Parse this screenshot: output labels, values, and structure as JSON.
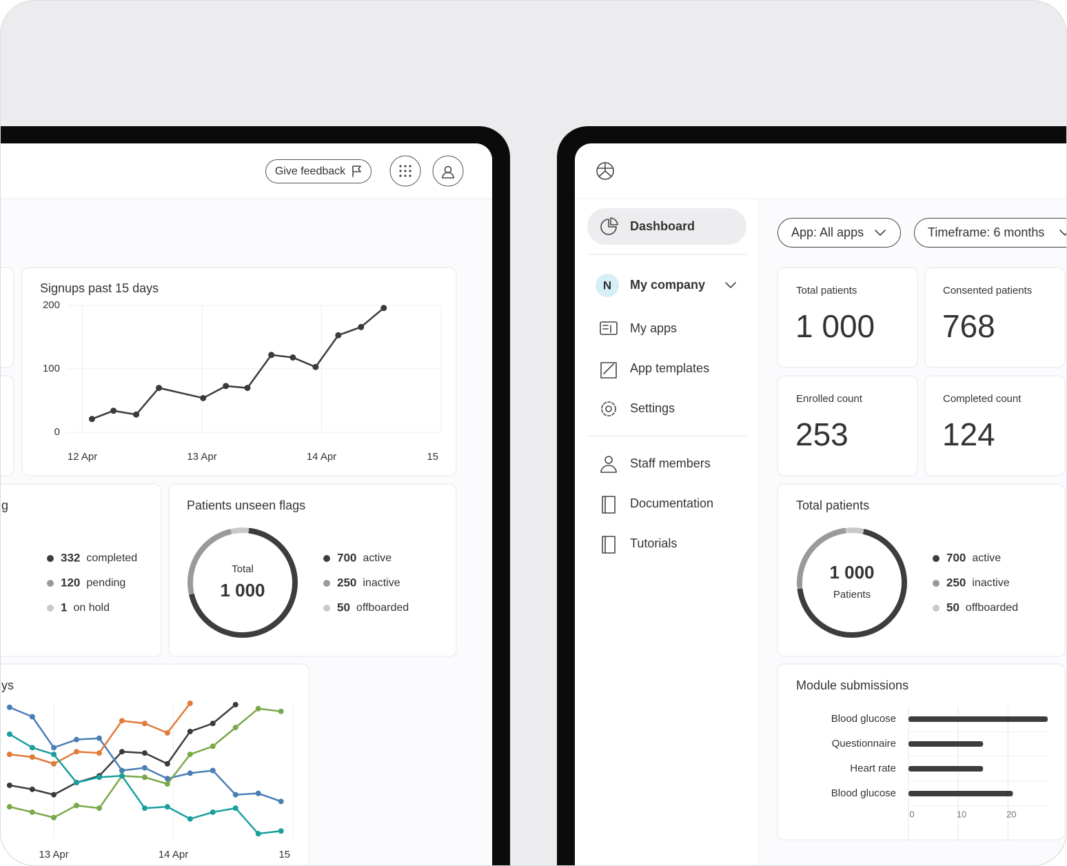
{
  "left_screen": {
    "feedback_button": "Give feedback"
  },
  "right_screen": {
    "nav": {
      "dashboard": "Dashboard",
      "company_avatar": "N",
      "company": "My company",
      "items": [
        "My apps",
        "App templates",
        "Settings",
        "Staff members",
        "Documentation",
        "Tutorials"
      ]
    },
    "filters": [
      "App: All apps",
      "Timeframe: 6 months"
    ],
    "stats": [
      {
        "label": "Total patients",
        "value": "1 000"
      },
      {
        "label": "Consented patients",
        "value": "768"
      },
      {
        "label": "Enrolled count",
        "value": "253"
      },
      {
        "label": "Completed count",
        "value": "124"
      }
    ]
  },
  "chart_data": [
    {
      "type": "line",
      "title": "Signups past 15 days",
      "x": [
        0.08,
        0.26,
        0.45,
        0.64,
        1.01,
        1.2,
        1.38,
        1.58,
        1.76,
        1.95,
        2.14,
        2.33,
        2.52
      ],
      "series": [
        {
          "color": "#3a3a3a",
          "values": [
            21,
            34,
            28,
            70,
            54,
            73,
            70,
            122,
            118,
            103,
            153,
            166,
            196
          ]
        }
      ],
      "xlim": [
        -0.13,
        3.0
      ],
      "xticks": [
        {
          "value": 0,
          "label": "12 Apr"
        },
        {
          "value": 1,
          "label": "13 Apr"
        },
        {
          "value": 2,
          "label": "14 Apr"
        },
        {
          "value": 3,
          "label": "15"
        }
      ],
      "ylim": [
        0,
        200
      ],
      "yticks": [
        0,
        100,
        200
      ],
      "grid": true
    },
    {
      "type": "pie",
      "title": "g",
      "categories": [
        "completed",
        "pending",
        "on hold"
      ],
      "values": [
        332,
        120,
        1
      ],
      "colors": [
        "#3d3d3d",
        "#9a9a9a",
        "#c9c9c9"
      ]
    },
    {
      "type": "pie",
      "title": "Patients unseen flags",
      "categories": [
        "active",
        "inactive",
        "offboarded"
      ],
      "values": [
        700,
        250,
        50
      ],
      "colors": [
        "#3d3d3d",
        "#9a9a9a",
        "#c9c9c9"
      ],
      "center_label": "Total",
      "center_value": "1 000"
    },
    {
      "type": "line",
      "title": "ys",
      "x": [
        -0.37,
        -0.18,
        0,
        0.19,
        0.38,
        0.57,
        0.76,
        0.95,
        1.14,
        1.33,
        1.52,
        1.71,
        1.9
      ],
      "series": [
        {
          "color": "#3a3a3a",
          "values": [
            39,
            36,
            32,
            41,
            46,
            64,
            63,
            55,
            79,
            85,
            99,
            null,
            null
          ]
        },
        {
          "color": "#4a7fb5",
          "values": [
            97,
            90,
            67,
            73,
            74,
            50,
            52,
            44,
            48,
            50,
            32,
            33,
            27
          ]
        },
        {
          "color": "#e07b39",
          "values": [
            62,
            60,
            55,
            64,
            63,
            87,
            85,
            78,
            100,
            null,
            null,
            null,
            null
          ]
        },
        {
          "color": "#7aa84a",
          "values": [
            23,
            19,
            15,
            24,
            22,
            46,
            45,
            40,
            62,
            68,
            82,
            96,
            94
          ]
        },
        {
          "color": "#1a9e9e",
          "values": [
            77,
            67,
            62,
            41,
            45,
            46,
            22,
            23,
            14,
            19,
            22,
            3,
            5
          ]
        }
      ],
      "xlim": [
        -0.45,
        2.0
      ],
      "xticks": [
        {
          "value": 0,
          "label": "13 Apr"
        },
        {
          "value": 1,
          "label": "14 Apr"
        },
        {
          "value": 2,
          "label": "15"
        }
      ],
      "ylim": [
        0,
        100
      ],
      "grid": true
    },
    {
      "type": "pie",
      "title": "Total patients",
      "categories": [
        "active",
        "inactive",
        "offboarded"
      ],
      "values": [
        700,
        250,
        50
      ],
      "colors": [
        "#3d3d3d",
        "#9a9a9a",
        "#c9c9c9"
      ],
      "center_value": "1 000",
      "center_label": "Patients"
    },
    {
      "type": "barh",
      "title": "Module submissions",
      "categories": [
        "Blood glucose",
        "Questionnaire",
        "Heart rate",
        "Blood glucose"
      ],
      "values": [
        28,
        15,
        15,
        21
      ],
      "color": "#3d3d3d",
      "xlim": [
        0,
        28
      ],
      "xticks": [
        0,
        10,
        20
      ],
      "grid": true
    }
  ]
}
